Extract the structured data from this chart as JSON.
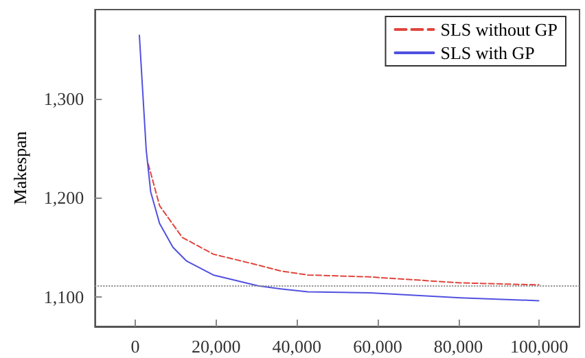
{
  "chart_data": {
    "type": "line",
    "ylabel": "Makespan",
    "xlim": [
      -10000,
      110000
    ],
    "ylim": [
      1070,
      1390
    ],
    "xticks": [
      {
        "value": 0,
        "label": "0"
      },
      {
        "value": 20000,
        "label": "20,000"
      },
      {
        "value": 40000,
        "label": "40,000"
      },
      {
        "value": 60000,
        "label": "60,000"
      },
      {
        "value": 80000,
        "label": "80,000"
      },
      {
        "value": 100000,
        "label": "100,000"
      }
    ],
    "yticks": [
      {
        "value": 1100,
        "label": "1,100"
      },
      {
        "value": 1200,
        "label": "1,200"
      },
      {
        "value": 1300,
        "label": "1,300"
      }
    ],
    "grid": false,
    "legend": "top right",
    "marker": "none",
    "series": [
      {
        "name": "SLS without GP",
        "color": "#e0453c",
        "line_style": "dashed",
        "x": [
          3200,
          6000,
          11600,
          19300,
          30400,
          36000,
          42700,
          58200,
          80500,
          99900
        ],
        "values": [
          1234,
          1192,
          1160,
          1143,
          1132,
          1126,
          1122,
          1120,
          1114,
          1112
        ]
      },
      {
        "name": "SLS with GP",
        "color": "#5050e0",
        "line_style": "solid",
        "x": [
          1000,
          1800,
          2700,
          3800,
          6000,
          9300,
          12700,
          19300,
          30400,
          36000,
          42700,
          58200,
          80500,
          99900
        ],
        "values": [
          1364,
          1309,
          1248,
          1206,
          1174,
          1150,
          1136,
          1122,
          1111,
          1108,
          1105,
          1104,
          1099,
          1096
        ]
      }
    ],
    "ref_lines": [
      {
        "axis": "y",
        "value": 1111,
        "label": null,
        "color": "#888888",
        "line_style": "dotted"
      }
    ]
  }
}
